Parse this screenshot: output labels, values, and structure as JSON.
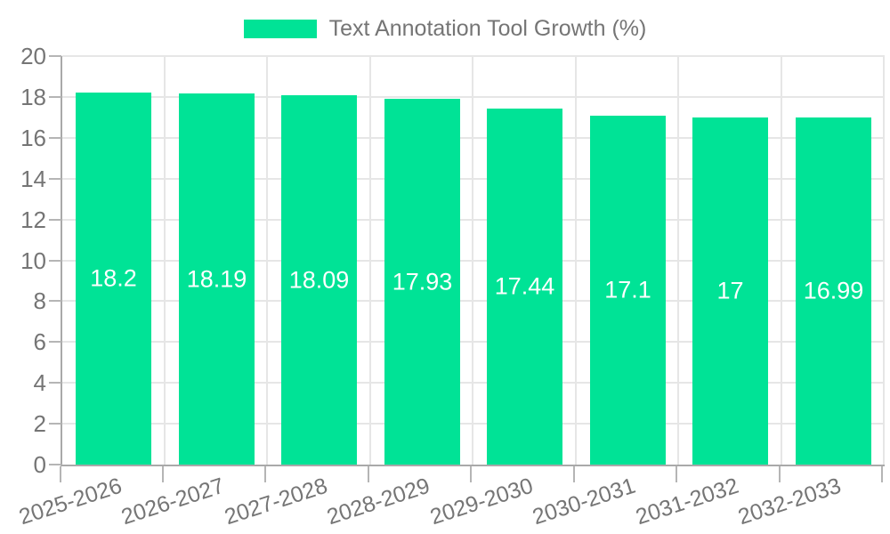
{
  "chart_data": {
    "type": "bar",
    "title": "Text Annotation Tool Growth (%)",
    "legend_position": "top",
    "categories": [
      "2025-2026",
      "2026-2027",
      "2027-2028",
      "2028-2029",
      "2029-2030",
      "2030-2031",
      "2031-2032",
      "2032-2033"
    ],
    "series": [
      {
        "name": "Text Annotation Tool Growth (%)",
        "values": [
          18.2,
          18.19,
          18.09,
          17.93,
          17.44,
          17.1,
          17,
          16.99
        ],
        "data_labels": [
          "18.2",
          "18.19",
          "18.09",
          "17.93",
          "17.44",
          "17.1",
          "17",
          "16.99"
        ]
      }
    ],
    "xlabel": "",
    "ylabel": "",
    "ylim": [
      0,
      20
    ],
    "ytick_step": 2,
    "yticks": [
      "0",
      "2",
      "4",
      "6",
      "8",
      "10",
      "12",
      "14",
      "16",
      "18",
      "20"
    ],
    "grid": true,
    "colors": {
      "bar": "#00E396",
      "bar_value_text": "#ffffff",
      "axis_text": "#757575",
      "gridline": "#e6e6e6",
      "axis_line": "#a9a9a9"
    }
  }
}
